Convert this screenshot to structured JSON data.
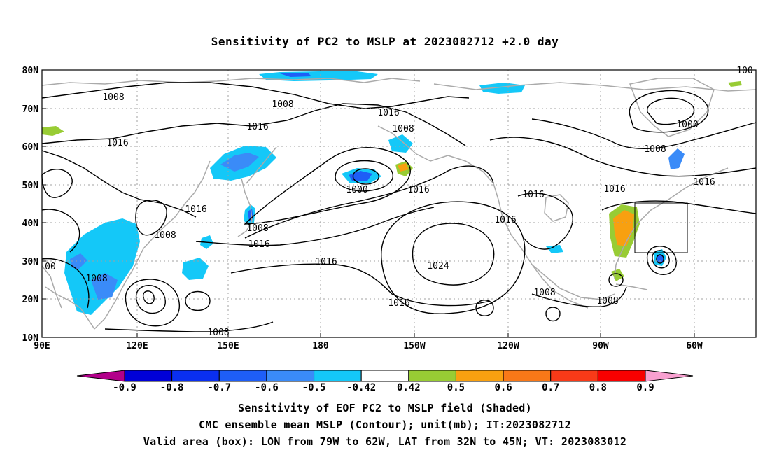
{
  "title": "Sensitivity of PC2 to MSLP at 2023082712 +2.0 day",
  "lat_labels": [
    "80N",
    "70N",
    "60N",
    "50N",
    "40N",
    "30N",
    "20N",
    "10N"
  ],
  "lon_labels": [
    "90E",
    "120E",
    "150E",
    "180",
    "150W",
    "120W",
    "90W",
    "60W"
  ],
  "contour_labels": [
    "1008",
    "1008",
    "1016",
    "1016",
    "1016",
    "1008",
    "1000",
    "1016",
    "1000",
    "1016",
    "1008",
    "1016",
    "1016",
    "1008",
    "1008",
    "1016",
    "1016",
    "1024",
    "1016",
    "1008",
    "1008",
    "1016",
    "1008",
    "1016",
    "1008",
    "00",
    "100"
  ],
  "colorbar": {
    "labels": [
      "-0.9",
      "-0.8",
      "-0.7",
      "-0.6",
      "-0.5",
      "-0.42",
      "0.42",
      "0.5",
      "0.6",
      "0.7",
      "0.8",
      "0.9"
    ],
    "colors": [
      "#b2008a",
      "#0000d8",
      "#0a2ff0",
      "#1e5ef7",
      "#3a8bf8",
      "#14c8f8",
      "#ffffff",
      "#98cc34",
      "#f8a010",
      "#f87818",
      "#f83a18",
      "#f80000",
      "#f8a0d0"
    ]
  },
  "captions": [
    "Sensitivity of EOF PC2 to MSLP field (Shaded)",
    "CMC ensemble mean MSLP (Contour); unit(mb); IT:2023082712",
    "Valid area (box): LON from 79W to 62W, LAT from 32N to 45N; VT: 2023083012"
  ]
}
